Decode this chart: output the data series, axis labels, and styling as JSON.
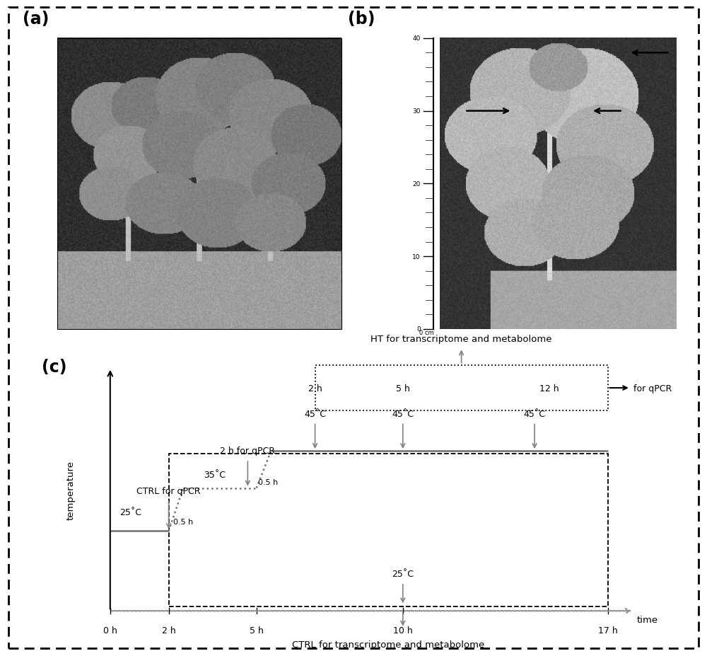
{
  "fig_width": 10.0,
  "fig_height": 9.28,
  "dpi": 100,
  "bg_color": "#ffffff",
  "panel_labels": [
    "(a)",
    "(b)",
    "(c)"
  ],
  "panel_label_fontsize": 17,
  "panel_label_fontweight": "bold",
  "axis_label_temp": "temperature",
  "axis_label_time": "time",
  "gray_line": "#707070",
  "gray_arrow": "#808080",
  "black": "#000000",
  "annotations": {
    "ctrl_qpcr": "CTRL for qPCR",
    "2h_qpcr": "2 h for qPCR",
    "ht_label": "HT for transcriptome and metabolome",
    "ctrl_label": "CTRL for transcriptome and metabolome",
    "for_qpcr": "for qPCR",
    "0_5h_1": "0.5 h",
    "0_5h_2": "0.5 h",
    "25C_1": "25˚C",
    "35C": "35˚C",
    "45C": "45˚C",
    "25C_2": "25˚C",
    "2h_ht": "2 h",
    "5h_ht": "5 h",
    "12h_ht": "12 h"
  },
  "time_axis": [
    0,
    2,
    5,
    10,
    17
  ],
  "time_labels": [
    "0 h",
    "2 h",
    "5 h",
    "10 h",
    "17 h"
  ]
}
